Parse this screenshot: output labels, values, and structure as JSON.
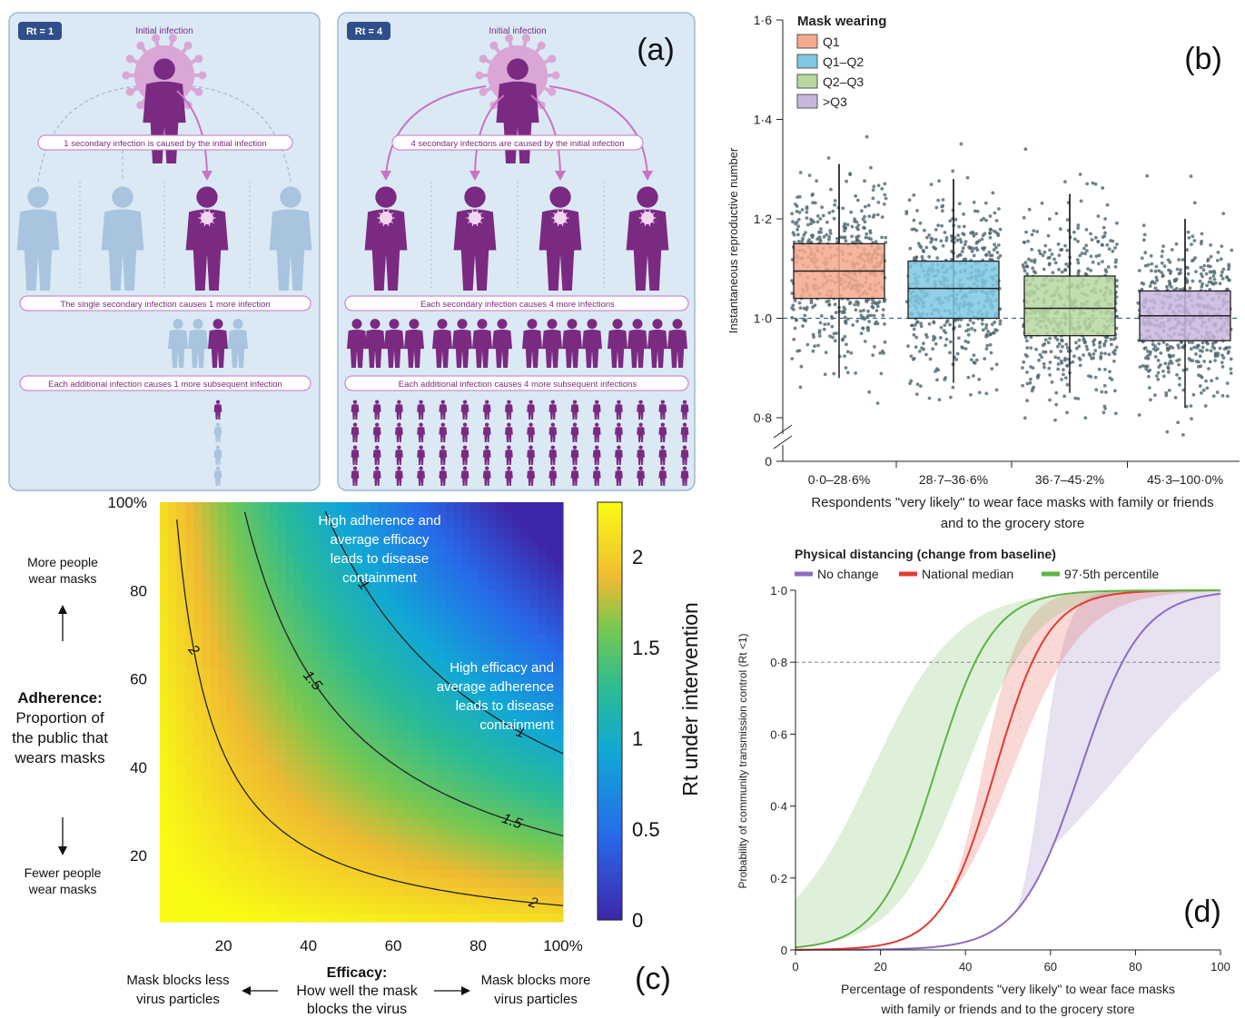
{
  "panel_a": {
    "label": "(a)",
    "left": {
      "badge": "Rt = 1",
      "initial": "Initial infection",
      "banner1": "1 secondary infection is caused by the initial infection",
      "banner2": "The single secondary infection causes 1 more infection",
      "banner3": "Each additional infection causes 1 more subsequent infection"
    },
    "right": {
      "badge": "Rt = 4",
      "initial": "Initial infection",
      "banner1": "4 secondary infections are caused by the initial infection",
      "banner2": "Each secondary infection causes 4 more infections",
      "banner3": "Each additional infection causes 4 more subsequent infections"
    },
    "colors": {
      "infected": "#7b2a82",
      "healthy": "#a9c4de",
      "virus": "#d9a6d6",
      "background": "#dbe9f5",
      "banner_border": "#c873c4"
    }
  },
  "panel_b": {
    "label": "(b)",
    "chart_data": {
      "type": "box",
      "legend_title": "Mask wearing",
      "categories": [
        "0·0–28·6%",
        "28·7–36·6%",
        "36·7–45·2%",
        "45·3–100·0%"
      ],
      "series_names": [
        "Q1",
        "Q1–Q2",
        "Q2–Q3",
        ">Q3"
      ],
      "colors": [
        "#f4a98c",
        "#7ec8e3",
        "#b7d7a0",
        "#c9b6dd"
      ],
      "boxes": [
        {
          "q1": 1.04,
          "median": 1.095,
          "q3": 1.15,
          "whisker_low": 0.88,
          "whisker_high": 1.31
        },
        {
          "q1": 1.0,
          "median": 1.06,
          "q3": 1.115,
          "whisker_low": 0.87,
          "whisker_high": 1.28
        },
        {
          "q1": 0.965,
          "median": 1.02,
          "q3": 1.085,
          "whisker_low": 0.85,
          "whisker_high": 1.25
        },
        {
          "q1": 0.955,
          "median": 1.005,
          "q3": 1.055,
          "whisker_low": 0.82,
          "whisker_high": 1.2
        }
      ],
      "reference_line": 1.0,
      "yticks": [
        "0·8",
        "1·0",
        "1·2",
        "1·4",
        "1·6"
      ],
      "ylim": [
        0.8,
        1.6
      ],
      "ylabel": "Instantaneous reproductive number",
      "xlabel_line1": "Respondents \"very likely\" to wear face masks with family or friends",
      "xlabel_line2": "and to the grocery store",
      "zero_tick": "0"
    }
  },
  "panel_c": {
    "label": "(c)",
    "chart_data": {
      "type": "heatmap",
      "x_ticks": [
        "20",
        "40",
        "60",
        "80",
        "100%"
      ],
      "y_ticks": [
        "20",
        "40",
        "60",
        "80",
        "100%"
      ],
      "xlim": [
        5,
        100
      ],
      "ylim": [
        5,
        100
      ],
      "contours": [
        {
          "level": 2,
          "label": "2"
        },
        {
          "level": 1.5,
          "label": "1.5"
        },
        {
          "level": 1,
          "label": "1"
        }
      ],
      "colorbar_ticks": [
        "0",
        "0.5",
        "1",
        "1.5",
        "2"
      ],
      "colorbar_range": [
        0,
        2.3
      ],
      "colorbar_label": "Rt under intervention",
      "annotation1": [
        "High adherence and",
        "average efficacy",
        "leads to disease",
        "containment"
      ],
      "annotation2": [
        "High efficacy and",
        "average adherence",
        "leads to disease",
        "containment"
      ],
      "y_title": [
        "Adherence:",
        "Proportion of",
        "the public that",
        "wears masks"
      ],
      "y_more": [
        "More people",
        "wear masks"
      ],
      "y_fewer": [
        "Fewer people",
        "wear masks"
      ],
      "x_title": [
        "Efficacy:",
        "How well the mask",
        "blocks the virus"
      ],
      "x_less": [
        "Mask blocks less",
        "virus particles"
      ],
      "x_more": [
        "Mask blocks more",
        "virus particles"
      ]
    }
  },
  "panel_d": {
    "label": "(d)",
    "chart_data": {
      "type": "line",
      "legend_title": "Physical distancing (change from baseline)",
      "series": [
        {
          "name": "No change",
          "color": "#8e6bbf",
          "midpoint": 67,
          "slope": 0.14
        },
        {
          "name": "National median",
          "color": "#e03c31",
          "midpoint": 47,
          "slope": 0.16
        },
        {
          "name": "97·5th percentile",
          "color": "#5db346",
          "midpoint": 33,
          "slope": 0.15
        }
      ],
      "x_ticks": [
        "0",
        "20",
        "40",
        "60",
        "80",
        "100"
      ],
      "y_ticks": [
        "0",
        "0·2",
        "0·4",
        "0·6",
        "0·8",
        "1·0"
      ],
      "xlim": [
        0,
        100
      ],
      "ylim": [
        0,
        1
      ],
      "reference_line": 0.8,
      "ylabel": "Probability of community transmission control (Rt <1)",
      "xlabel_line1": "Percentage of respondents \"very likely\" to wear face masks",
      "xlabel_line2": "with family or friends and to the grocery store"
    }
  }
}
